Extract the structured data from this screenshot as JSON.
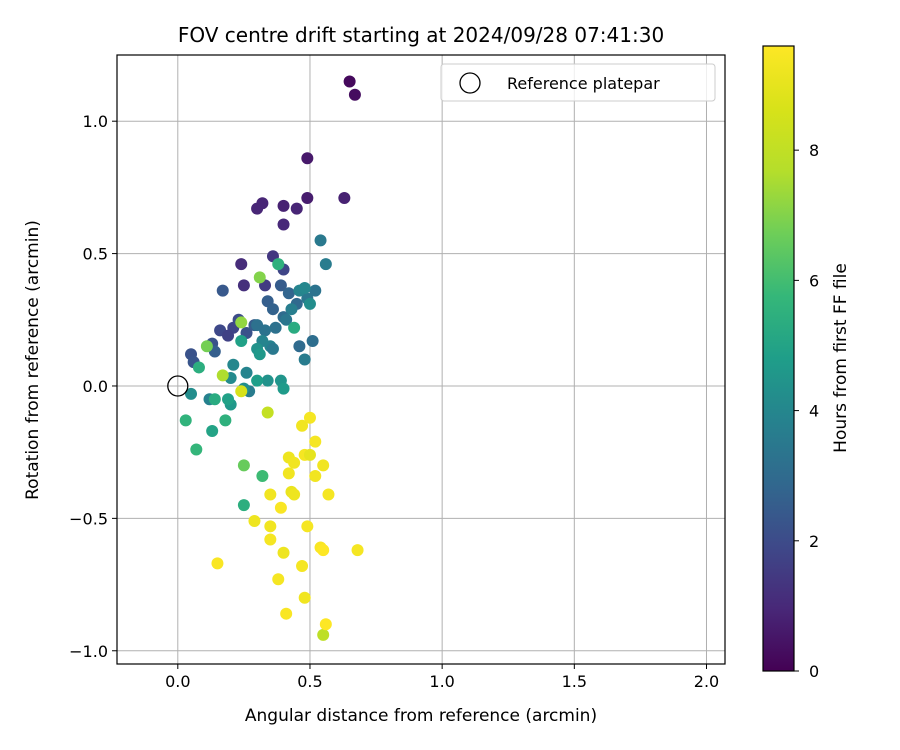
{
  "chart_data": {
    "type": "scatter",
    "title": "FOV centre drift starting at 2024/09/28 07:41:30",
    "xlabel": "Angular distance from reference (arcmin)",
    "ylabel": "Rotation from reference (arcmin)",
    "xlim": [
      -0.23,
      2.07
    ],
    "ylim": [
      -1.05,
      1.25
    ],
    "x_ticks": [
      0.0,
      0.5,
      1.0,
      1.5,
      2.0
    ],
    "x_tick_labels": [
      "0.0",
      "0.5",
      "1.0",
      "1.5",
      "2.0"
    ],
    "y_ticks": [
      -1.0,
      -0.5,
      0.0,
      0.5,
      1.0
    ],
    "y_tick_labels": [
      "−1.0",
      "−0.5",
      "0.0",
      "0.5",
      "1.0"
    ],
    "grid": true,
    "colormap": "viridis",
    "colorbar": {
      "label": "Hours from first FF file",
      "range": [
        0,
        9.6
      ],
      "ticks": [
        0,
        2,
        4,
        6,
        8
      ],
      "tick_labels": [
        "0",
        "2",
        "4",
        "6",
        "8"
      ]
    },
    "legend": {
      "position": "top-right",
      "entries": [
        {
          "label": "Reference platepar",
          "marker": "open-circle"
        }
      ]
    },
    "reference_point": {
      "x": 0.0,
      "y": 0.0
    },
    "points": [
      {
        "x": 0.65,
        "y": 1.15,
        "h": 0.2
      },
      {
        "x": 0.67,
        "y": 1.1,
        "h": 0.3
      },
      {
        "x": 0.49,
        "y": 0.86,
        "h": 0.6
      },
      {
        "x": 0.49,
        "y": 0.71,
        "h": 0.7
      },
      {
        "x": 0.63,
        "y": 0.71,
        "h": 0.8
      },
      {
        "x": 0.3,
        "y": 0.67,
        "h": 0.9
      },
      {
        "x": 0.32,
        "y": 0.69,
        "h": 0.9
      },
      {
        "x": 0.4,
        "y": 0.68,
        "h": 0.8
      },
      {
        "x": 0.45,
        "y": 0.67,
        "h": 0.9
      },
      {
        "x": 0.4,
        "y": 0.61,
        "h": 1.0
      },
      {
        "x": 0.24,
        "y": 0.46,
        "h": 1.1
      },
      {
        "x": 0.25,
        "y": 0.38,
        "h": 1.2
      },
      {
        "x": 0.36,
        "y": 0.49,
        "h": 1.4
      },
      {
        "x": 0.4,
        "y": 0.44,
        "h": 1.8
      },
      {
        "x": 0.33,
        "y": 0.38,
        "h": 1.5
      },
      {
        "x": 0.17,
        "y": 0.36,
        "h": 2.4
      },
      {
        "x": 0.21,
        "y": 0.22,
        "h": 1.8
      },
      {
        "x": 0.16,
        "y": 0.21,
        "h": 1.9
      },
      {
        "x": 0.19,
        "y": 0.19,
        "h": 1.7
      },
      {
        "x": 0.23,
        "y": 0.25,
        "h": 2.0
      },
      {
        "x": 0.05,
        "y": 0.12,
        "h": 2.2
      },
      {
        "x": 0.06,
        "y": 0.09,
        "h": 2.3
      },
      {
        "x": 0.13,
        "y": 0.16,
        "h": 2.2
      },
      {
        "x": 0.14,
        "y": 0.13,
        "h": 2.6
      },
      {
        "x": 0.26,
        "y": 0.2,
        "h": 2.2
      },
      {
        "x": 0.29,
        "y": 0.23,
        "h": 2.5
      },
      {
        "x": 0.34,
        "y": 0.32,
        "h": 2.6
      },
      {
        "x": 0.36,
        "y": 0.29,
        "h": 2.7
      },
      {
        "x": 0.39,
        "y": 0.38,
        "h": 2.5
      },
      {
        "x": 0.42,
        "y": 0.35,
        "h": 2.8
      },
      {
        "x": 0.45,
        "y": 0.31,
        "h": 2.9
      },
      {
        "x": 0.4,
        "y": 0.26,
        "h": 3.0
      },
      {
        "x": 0.37,
        "y": 0.22,
        "h": 3.2
      },
      {
        "x": 0.33,
        "y": 0.21,
        "h": 3.3
      },
      {
        "x": 0.3,
        "y": 0.23,
        "h": 3.2
      },
      {
        "x": 0.46,
        "y": 0.15,
        "h": 3.0
      },
      {
        "x": 0.51,
        "y": 0.17,
        "h": 3.1
      },
      {
        "x": 0.49,
        "y": 0.33,
        "h": 3.4
      },
      {
        "x": 0.52,
        "y": 0.36,
        "h": 3.3
      },
      {
        "x": 0.54,
        "y": 0.55,
        "h": 3.5
      },
      {
        "x": 0.56,
        "y": 0.46,
        "h": 3.6
      },
      {
        "x": 0.48,
        "y": 0.1,
        "h": 3.6
      },
      {
        "x": 0.41,
        "y": 0.25,
        "h": 3.4
      },
      {
        "x": 0.43,
        "y": 0.29,
        "h": 3.7
      },
      {
        "x": 0.46,
        "y": 0.36,
        "h": 3.9
      },
      {
        "x": 0.48,
        "y": 0.37,
        "h": 4.0
      },
      {
        "x": 0.5,
        "y": 0.31,
        "h": 4.2
      },
      {
        "x": 0.35,
        "y": 0.15,
        "h": 3.8
      },
      {
        "x": 0.36,
        "y": 0.14,
        "h": 3.5
      },
      {
        "x": 0.32,
        "y": 0.17,
        "h": 3.9
      },
      {
        "x": 0.3,
        "y": 0.14,
        "h": 4.4
      },
      {
        "x": 0.31,
        "y": 0.12,
        "h": 4.6
      },
      {
        "x": 0.26,
        "y": 0.05,
        "h": 3.9
      },
      {
        "x": 0.27,
        "y": -0.02,
        "h": 3.6
      },
      {
        "x": 0.25,
        "y": -0.01,
        "h": 4.3
      },
      {
        "x": 0.21,
        "y": 0.08,
        "h": 4.0
      },
      {
        "x": 0.2,
        "y": 0.03,
        "h": 4.1
      },
      {
        "x": 0.34,
        "y": 0.02,
        "h": 4.4
      },
      {
        "x": 0.3,
        "y": 0.02,
        "h": 4.8
      },
      {
        "x": 0.39,
        "y": 0.02,
        "h": 4.5
      },
      {
        "x": 0.4,
        "y": -0.01,
        "h": 4.7
      },
      {
        "x": 0.12,
        "y": -0.05,
        "h": 3.8
      },
      {
        "x": 0.05,
        "y": -0.03,
        "h": 4.2
      },
      {
        "x": 0.2,
        "y": -0.07,
        "h": 4.6
      },
      {
        "x": 0.19,
        "y": -0.05,
        "h": 4.9
      },
      {
        "x": 0.13,
        "y": -0.17,
        "h": 5.0
      },
      {
        "x": 0.24,
        "y": 0.17,
        "h": 4.9
      },
      {
        "x": 0.44,
        "y": 0.22,
        "h": 5.3
      },
      {
        "x": 0.38,
        "y": 0.46,
        "h": 5.5
      },
      {
        "x": 0.08,
        "y": 0.07,
        "h": 5.4
      },
      {
        "x": 0.14,
        "y": -0.05,
        "h": 5.3
      },
      {
        "x": 0.18,
        "y": -0.13,
        "h": 5.5
      },
      {
        "x": 0.03,
        "y": -0.13,
        "h": 5.6
      },
      {
        "x": 0.07,
        "y": -0.24,
        "h": 5.7
      },
      {
        "x": 0.25,
        "y": -0.45,
        "h": 5.4
      },
      {
        "x": 0.32,
        "y": -0.34,
        "h": 5.9
      },
      {
        "x": 0.25,
        "y": -0.3,
        "h": 6.6
      },
      {
        "x": 0.11,
        "y": 0.15,
        "h": 6.8
      },
      {
        "x": 0.31,
        "y": 0.41,
        "h": 7.0
      },
      {
        "x": 0.24,
        "y": 0.24,
        "h": 7.2
      },
      {
        "x": 0.17,
        "y": 0.04,
        "h": 7.6
      },
      {
        "x": 0.24,
        "y": -0.02,
        "h": 8.6
      },
      {
        "x": 0.34,
        "y": -0.1,
        "h": 8.1
      },
      {
        "x": 0.55,
        "y": -0.94,
        "h": 7.9
      },
      {
        "x": 0.5,
        "y": -0.12,
        "h": 9.4
      },
      {
        "x": 0.47,
        "y": -0.15,
        "h": 9.3
      },
      {
        "x": 0.52,
        "y": -0.21,
        "h": 9.4
      },
      {
        "x": 0.42,
        "y": -0.27,
        "h": 9.2
      },
      {
        "x": 0.44,
        "y": -0.29,
        "h": 9.3
      },
      {
        "x": 0.48,
        "y": -0.26,
        "h": 9.4
      },
      {
        "x": 0.5,
        "y": -0.26,
        "h": 9.0
      },
      {
        "x": 0.55,
        "y": -0.3,
        "h": 9.3
      },
      {
        "x": 0.42,
        "y": -0.33,
        "h": 9.3
      },
      {
        "x": 0.52,
        "y": -0.34,
        "h": 9.3
      },
      {
        "x": 0.43,
        "y": -0.4,
        "h": 9.1
      },
      {
        "x": 0.44,
        "y": -0.41,
        "h": 9.2
      },
      {
        "x": 0.35,
        "y": -0.41,
        "h": 9.3
      },
      {
        "x": 0.57,
        "y": -0.41,
        "h": 9.4
      },
      {
        "x": 0.39,
        "y": -0.46,
        "h": 9.5
      },
      {
        "x": 0.29,
        "y": -0.51,
        "h": 9.2
      },
      {
        "x": 0.35,
        "y": -0.53,
        "h": 9.3
      },
      {
        "x": 0.49,
        "y": -0.53,
        "h": 9.4
      },
      {
        "x": 0.35,
        "y": -0.58,
        "h": 9.4
      },
      {
        "x": 0.54,
        "y": -0.61,
        "h": 9.5
      },
      {
        "x": 0.55,
        "y": -0.62,
        "h": 9.6
      },
      {
        "x": 0.4,
        "y": -0.63,
        "h": 9.2
      },
      {
        "x": 0.68,
        "y": -0.62,
        "h": 9.4
      },
      {
        "x": 0.47,
        "y": -0.68,
        "h": 9.4
      },
      {
        "x": 0.15,
        "y": -0.67,
        "h": 9.5
      },
      {
        "x": 0.38,
        "y": -0.73,
        "h": 9.4
      },
      {
        "x": 0.48,
        "y": -0.8,
        "h": 9.3
      },
      {
        "x": 0.41,
        "y": -0.86,
        "h": 9.5
      },
      {
        "x": 0.56,
        "y": -0.9,
        "h": 9.6
      }
    ]
  }
}
